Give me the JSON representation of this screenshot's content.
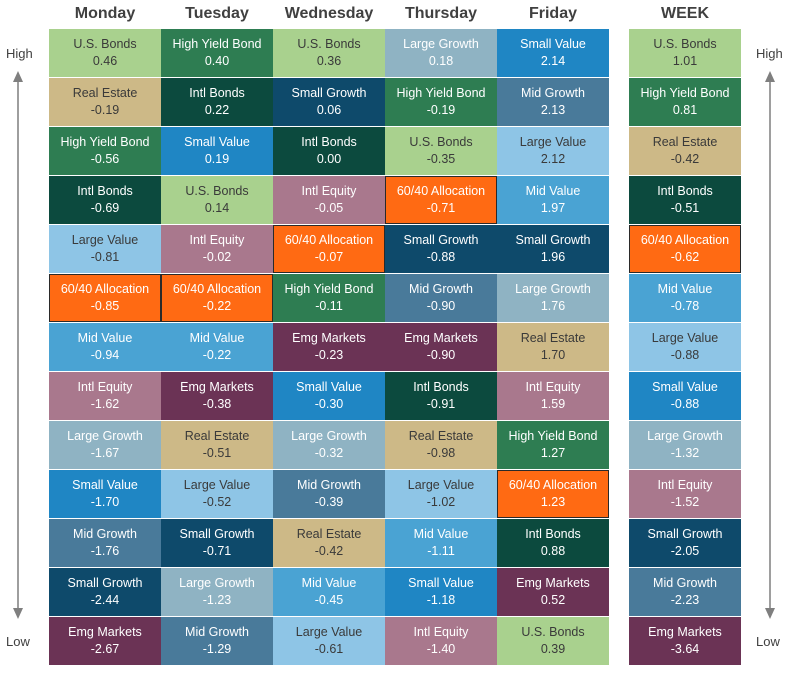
{
  "days": [
    "Monday",
    "Tuesday",
    "Wednesday",
    "Thursday",
    "Friday",
    "WEEK"
  ],
  "side_labels": {
    "high": "High",
    "low": "Low"
  },
  "colors": {
    "U.S. Bonds": "#a9d18e",
    "High Yield Bond": "#2e7d52",
    "Intl Bonds": "#0c4a3e",
    "Real Estate": "#cdb987",
    "Small Growth": "#0e4a6b",
    "Small Value": "#1f86c4",
    "Large Growth": "#8fb3c3",
    "Mid Growth": "#497a9a",
    "Large Value": "#8ec5e6",
    "Mid Value": "#4aa3d3",
    "Intl Equity": "#a9788d",
    "Emg Markets": "#6b3355",
    "60/40 Allocation": "#ff6a13"
  },
  "light_text_assets": [
    "U.S. Bonds",
    "Real Estate",
    "Large Value"
  ],
  "highlight_asset": "60/40 Allocation",
  "chart_data": {
    "type": "table",
    "title": "",
    "columns": [
      {
        "name": "Monday",
        "rows": [
          {
            "asset": "U.S. Bonds",
            "value": "0.46"
          },
          {
            "asset": "Real Estate",
            "value": "-0.19"
          },
          {
            "asset": "High Yield Bond",
            "value": "-0.56"
          },
          {
            "asset": "Intl Bonds",
            "value": "-0.69"
          },
          {
            "asset": "Large Value",
            "value": "-0.81"
          },
          {
            "asset": "60/40 Allocation",
            "value": "-0.85"
          },
          {
            "asset": "Mid Value",
            "value": "-0.94"
          },
          {
            "asset": "Intl Equity",
            "value": "-1.62"
          },
          {
            "asset": "Large Growth",
            "value": "-1.67"
          },
          {
            "asset": "Small Value",
            "value": "-1.70"
          },
          {
            "asset": "Mid Growth",
            "value": "-1.76"
          },
          {
            "asset": "Small Growth",
            "value": "-2.44"
          },
          {
            "asset": "Emg Markets",
            "value": "-2.67"
          }
        ]
      },
      {
        "name": "Tuesday",
        "rows": [
          {
            "asset": "High Yield Bond",
            "value": "0.40"
          },
          {
            "asset": "Intl Bonds",
            "value": "0.22"
          },
          {
            "asset": "Small Value",
            "value": "0.19"
          },
          {
            "asset": "U.S. Bonds",
            "value": "0.14"
          },
          {
            "asset": "Intl Equity",
            "value": "-0.02"
          },
          {
            "asset": "60/40 Allocation",
            "value": "-0.22"
          },
          {
            "asset": "Mid Value",
            "value": "-0.22"
          },
          {
            "asset": "Emg Markets",
            "value": "-0.38"
          },
          {
            "asset": "Real Estate",
            "value": "-0.51"
          },
          {
            "asset": "Large Value",
            "value": "-0.52"
          },
          {
            "asset": "Small Growth",
            "value": "-0.71"
          },
          {
            "asset": "Large Growth",
            "value": "-1.23"
          },
          {
            "asset": "Mid Growth",
            "value": "-1.29"
          }
        ]
      },
      {
        "name": "Wednesday",
        "rows": [
          {
            "asset": "U.S. Bonds",
            "value": "0.36"
          },
          {
            "asset": "Small Growth",
            "value": "0.06"
          },
          {
            "asset": "Intl Bonds",
            "value": "0.00"
          },
          {
            "asset": "Intl Equity",
            "value": "-0.05"
          },
          {
            "asset": "60/40 Allocation",
            "value": "-0.07"
          },
          {
            "asset": "High Yield Bond",
            "value": "-0.11"
          },
          {
            "asset": "Emg Markets",
            "value": "-0.23"
          },
          {
            "asset": "Small Value",
            "value": "-0.30"
          },
          {
            "asset": "Large Growth",
            "value": "-0.32"
          },
          {
            "asset": "Mid Growth",
            "value": "-0.39"
          },
          {
            "asset": "Real Estate",
            "value": "-0.42"
          },
          {
            "asset": "Mid Value",
            "value": "-0.45"
          },
          {
            "asset": "Large Value",
            "value": "-0.61"
          }
        ]
      },
      {
        "name": "Thursday",
        "rows": [
          {
            "asset": "Large Growth",
            "value": "0.18"
          },
          {
            "asset": "High Yield Bond",
            "value": "-0.19"
          },
          {
            "asset": "U.S. Bonds",
            "value": "-0.35"
          },
          {
            "asset": "60/40 Allocation",
            "value": "-0.71"
          },
          {
            "asset": "Small Growth",
            "value": "-0.88"
          },
          {
            "asset": "Mid Growth",
            "value": "-0.90"
          },
          {
            "asset": "Emg Markets",
            "value": "-0.90"
          },
          {
            "asset": "Intl Bonds",
            "value": "-0.91"
          },
          {
            "asset": "Real Estate",
            "value": "-0.98"
          },
          {
            "asset": "Large Value",
            "value": "-1.02"
          },
          {
            "asset": "Mid Value",
            "value": "-1.11"
          },
          {
            "asset": "Small Value",
            "value": "-1.18"
          },
          {
            "asset": "Intl Equity",
            "value": "-1.40"
          }
        ]
      },
      {
        "name": "Friday",
        "rows": [
          {
            "asset": "Small Value",
            "value": "2.14"
          },
          {
            "asset": "Mid Growth",
            "value": "2.13"
          },
          {
            "asset": "Large Value",
            "value": "2.12"
          },
          {
            "asset": "Mid Value",
            "value": "1.97"
          },
          {
            "asset": "Small Growth",
            "value": "1.96"
          },
          {
            "asset": "Large Growth",
            "value": "1.76"
          },
          {
            "asset": "Real Estate",
            "value": "1.70"
          },
          {
            "asset": "Intl Equity",
            "value": "1.59"
          },
          {
            "asset": "High Yield Bond",
            "value": "1.27"
          },
          {
            "asset": "60/40 Allocation",
            "value": "1.23"
          },
          {
            "asset": "Intl Bonds",
            "value": "0.88"
          },
          {
            "asset": "Emg Markets",
            "value": "0.52"
          },
          {
            "asset": "U.S. Bonds",
            "value": "0.39"
          }
        ]
      },
      {
        "name": "WEEK",
        "rows": [
          {
            "asset": "U.S. Bonds",
            "value": "1.01"
          },
          {
            "asset": "High Yield Bond",
            "value": "0.81"
          },
          {
            "asset": "Real Estate",
            "value": "-0.42"
          },
          {
            "asset": "Intl Bonds",
            "value": "-0.51"
          },
          {
            "asset": "60/40 Allocation",
            "value": "-0.62"
          },
          {
            "asset": "Mid Value",
            "value": "-0.78"
          },
          {
            "asset": "Large Value",
            "value": "-0.88"
          },
          {
            "asset": "Small Value",
            "value": "-0.88"
          },
          {
            "asset": "Large Growth",
            "value": "-1.32"
          },
          {
            "asset": "Intl Equity",
            "value": "-1.52"
          },
          {
            "asset": "Small Growth",
            "value": "-2.05"
          },
          {
            "asset": "Mid Growth",
            "value": "-2.23"
          },
          {
            "asset": "Emg Markets",
            "value": "-3.64"
          }
        ]
      }
    ]
  }
}
